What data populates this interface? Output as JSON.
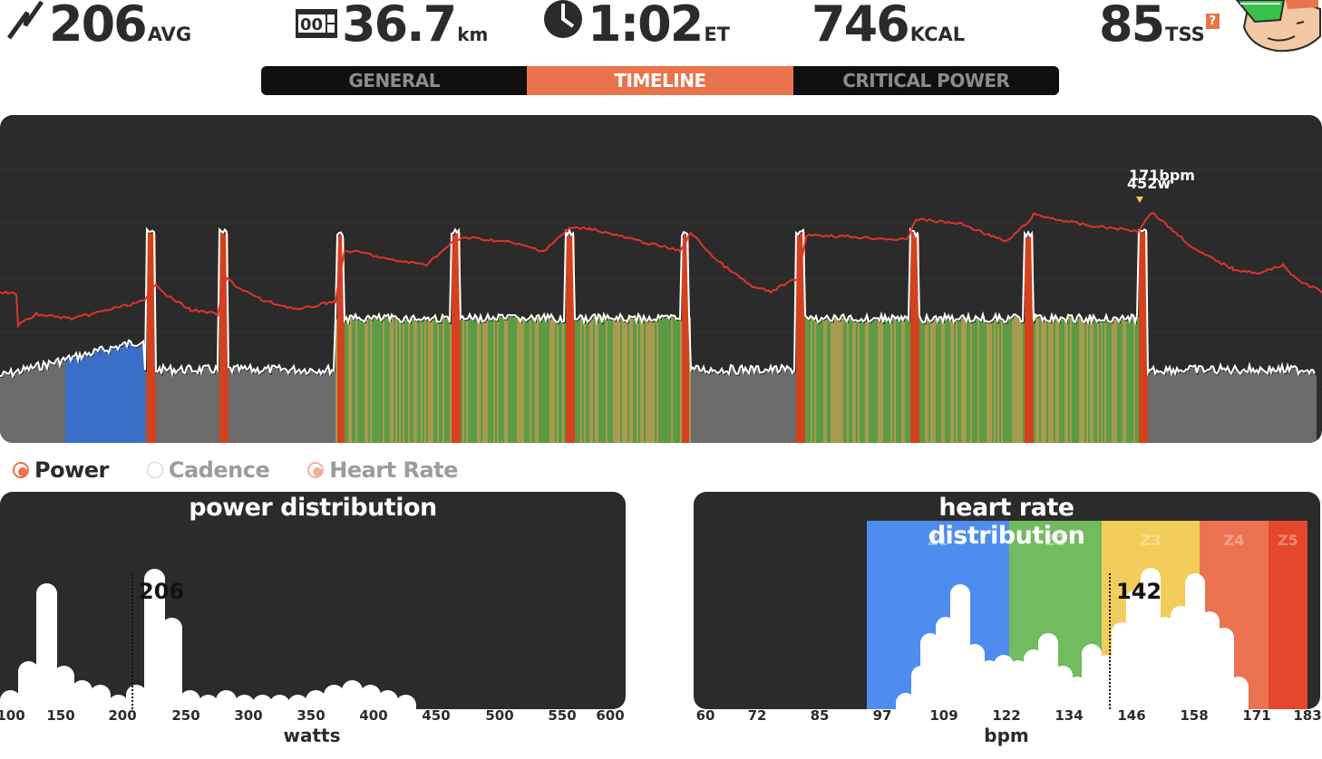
{
  "stats": {
    "power": {
      "value": "206",
      "unit": "AVG",
      "icon": "lightning-icon"
    },
    "distance": {
      "value": "36.7",
      "unit": "km",
      "icon": "odometer-icon"
    },
    "time": {
      "value": "1:02",
      "unit": "ET",
      "icon": "clock-icon"
    },
    "calories": {
      "value": "746",
      "unit": "KCAL"
    },
    "tss": {
      "value": "85",
      "unit": "TSS",
      "badge": "?"
    }
  },
  "avatar": {
    "icon": "avatar-icon"
  },
  "tabs": [
    {
      "label": "GENERAL",
      "active": false
    },
    {
      "label": "TIMELINE",
      "active": true
    },
    {
      "label": "CRITICAL POWER",
      "active": false
    }
  ],
  "timeline": {
    "marker_hr": "171bpm",
    "marker_power": "452w"
  },
  "legend": {
    "power": "Power",
    "cadence": "Cadence",
    "heart_rate": "Heart Rate"
  },
  "power_panel": {
    "title": "power distribution",
    "avg_label": "206",
    "axis_label": "watts",
    "ticks": [
      "100",
      "150",
      "200",
      "250",
      "300",
      "350",
      "400",
      "450",
      "500",
      "550",
      "600"
    ]
  },
  "hr_panel": {
    "title": "heart rate distribution",
    "avg_label": "142",
    "axis_label": "bpm",
    "ticks": [
      "60",
      "72",
      "85",
      "97",
      "109",
      "122",
      "134",
      "146",
      "158",
      "171",
      "183"
    ],
    "zones": [
      "Z1",
      "Z2",
      "Z3",
      "Z4",
      "Z5"
    ]
  },
  "chart_data": [
    {
      "type": "bar",
      "title": "power distribution",
      "xlabel": "watts",
      "x": [
        100,
        115,
        130,
        145,
        160,
        175,
        190,
        205,
        220,
        235,
        250,
        265,
        280,
        295,
        310,
        325,
        340,
        355,
        370,
        385,
        400,
        415,
        430,
        445,
        460
      ],
      "values": [
        4,
        10,
        26,
        9,
        6,
        5,
        3,
        5,
        29,
        19,
        4,
        3,
        4,
        3,
        3,
        3,
        3,
        4,
        5,
        6,
        5,
        4,
        3,
        0,
        0
      ],
      "avg": 206,
      "xlim": [
        100,
        600
      ]
    },
    {
      "type": "bar",
      "title": "heart rate distribution",
      "xlabel": "bpm",
      "x": [
        101,
        104,
        106,
        109,
        112,
        115,
        118,
        121,
        124,
        127,
        130,
        133,
        136,
        139,
        142,
        145,
        148,
        151,
        154,
        157,
        160,
        163,
        166,
        169,
        172,
        175
      ],
      "values": [
        3,
        8,
        14,
        17,
        23,
        12,
        9,
        10,
        9,
        11,
        14,
        8,
        6,
        12,
        10,
        16,
        22,
        26,
        17,
        19,
        25,
        18,
        15,
        6,
        0,
        0
      ],
      "avg": 142,
      "xlim": [
        60,
        183
      ],
      "zones": [
        {
          "name": "Z1",
          "from": 93,
          "to": 122,
          "color": "#4e8cf0"
        },
        {
          "name": "Z2",
          "from": 122,
          "to": 141,
          "color": "#72bb5e"
        },
        {
          "name": "Z3",
          "from": 141,
          "to": 161,
          "color": "#f3cd5b"
        },
        {
          "name": "Z4",
          "from": 161,
          "to": 175,
          "color": "#ec7351"
        },
        {
          "name": "Z5",
          "from": 175,
          "to": 183,
          "color": "#e5472c"
        }
      ]
    }
  ],
  "colors": {
    "accent": "#e9734a",
    "panel": "#2b2b2b",
    "power_gray": "#6b6b6b",
    "power_blue": "#3a6fc8",
    "power_olive": "#a89a4f",
    "power_green": "#5c9a46",
    "power_red": "#d3411f",
    "hr_line": "#e0342a",
    "power_line": "#ffffff"
  }
}
